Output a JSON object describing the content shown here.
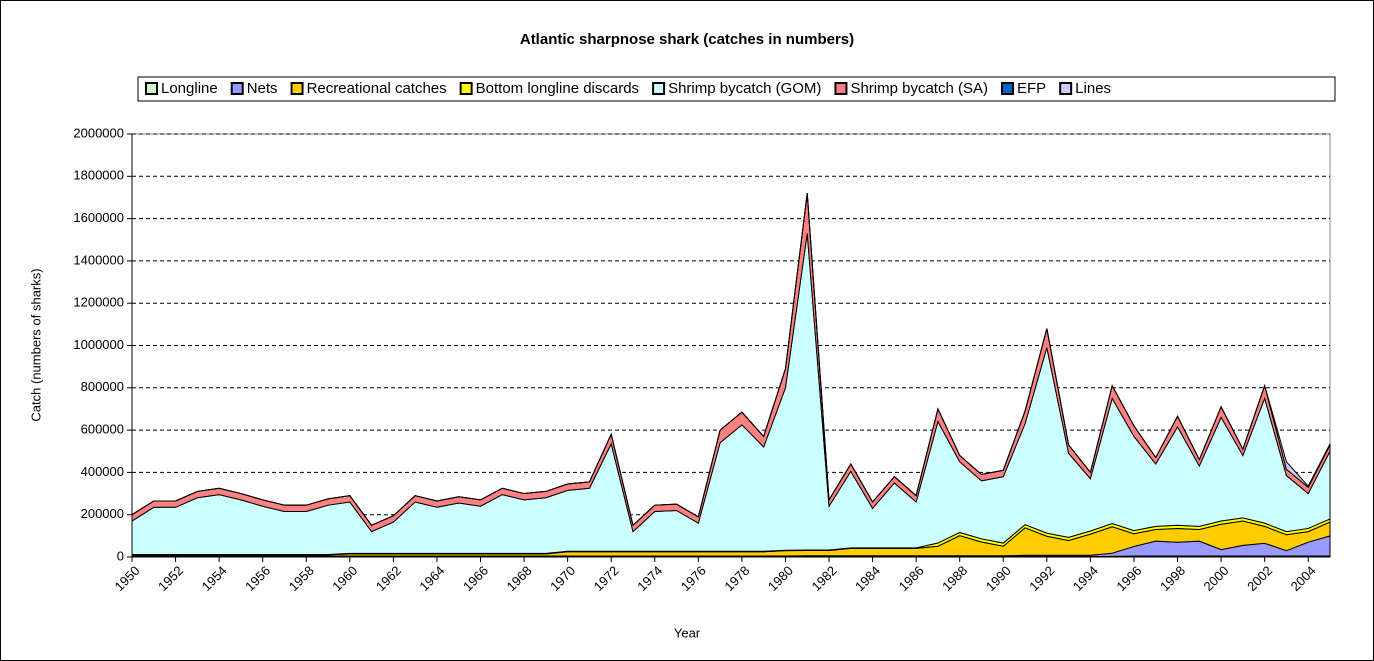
{
  "chart_data": {
    "type": "stacked_area",
    "title": "Atlantic sharpnose shark (catches in numbers)",
    "x_label": "Year",
    "y_label": "Catch (numbers of sharks)",
    "x": [
      1950,
      1951,
      1952,
      1953,
      1954,
      1955,
      1956,
      1957,
      1958,
      1959,
      1960,
      1961,
      1962,
      1963,
      1964,
      1965,
      1966,
      1967,
      1968,
      1969,
      1970,
      1971,
      1972,
      1973,
      1974,
      1975,
      1976,
      1977,
      1978,
      1979,
      1980,
      1981,
      1982,
      1983,
      1984,
      1985,
      1986,
      1987,
      1988,
      1989,
      1990,
      1991,
      1992,
      1993,
      1994,
      1995,
      1996,
      1997,
      1998,
      1999,
      2000,
      2001,
      2002,
      2003,
      2004,
      2005
    ],
    "xlim": [
      1950,
      2005
    ],
    "xticks": [
      1950,
      1952,
      1954,
      1956,
      1958,
      1960,
      1962,
      1964,
      1966,
      1968,
      1970,
      1972,
      1974,
      1976,
      1978,
      1980,
      1982,
      1984,
      1986,
      1988,
      1990,
      1992,
      1994,
      1996,
      1998,
      2000,
      2002,
      2004
    ],
    "ylim": [
      0,
      2000000
    ],
    "yticks": [
      0,
      200000,
      400000,
      600000,
      800000,
      1000000,
      1200000,
      1400000,
      1600000,
      1800000,
      2000000
    ],
    "grid": true,
    "legend": "top",
    "series": [
      {
        "name": "Longline",
        "color": "#ccffcc",
        "values": [
          2000,
          2000,
          2000,
          2000,
          2000,
          2000,
          2000,
          2000,
          2000,
          2000,
          2000,
          2000,
          2000,
          2000,
          2000,
          2000,
          2000,
          2000,
          2000,
          2000,
          2000,
          2000,
          2000,
          2000,
          2000,
          2000,
          2000,
          2000,
          2000,
          2000,
          2000,
          3000,
          3000,
          3000,
          3000,
          3000,
          3000,
          3000,
          3000,
          3000,
          3000,
          3000,
          3000,
          3000,
          3000,
          3000,
          5000,
          5000,
          5000,
          5000,
          5000,
          5000,
          5000,
          5000,
          5000,
          5000
        ]
      },
      {
        "name": "Nets",
        "color": "#9999ff",
        "values": [
          3000,
          3000,
          3000,
          3000,
          3000,
          3000,
          3000,
          3000,
          3000,
          3000,
          3000,
          3000,
          3000,
          3000,
          3000,
          3000,
          3000,
          3000,
          3000,
          3000,
          3000,
          3000,
          3000,
          3000,
          3000,
          3000,
          3000,
          3000,
          3000,
          3000,
          3000,
          3000,
          3000,
          3000,
          3000,
          3000,
          3000,
          3000,
          3000,
          3000,
          3000,
          5000,
          5000,
          5000,
          5000,
          15000,
          45000,
          70000,
          65000,
          70000,
          30000,
          50000,
          60000,
          25000,
          65000,
          95000
        ]
      },
      {
        "name": "Recreational catches",
        "color": "#ffcc00",
        "values": [
          5000,
          5000,
          5000,
          5000,
          5000,
          5000,
          5000,
          5000,
          5000,
          5000,
          10000,
          10000,
          10000,
          10000,
          10000,
          10000,
          10000,
          10000,
          10000,
          10000,
          20000,
          20000,
          20000,
          20000,
          20000,
          20000,
          20000,
          20000,
          20000,
          20000,
          25000,
          25000,
          25000,
          35000,
          35000,
          35000,
          35000,
          45000,
          95000,
          65000,
          45000,
          130000,
          90000,
          70000,
          100000,
          125000,
          60000,
          55000,
          65000,
          55000,
          120000,
          115000,
          80000,
          75000,
          50000,
          65000
        ]
      },
      {
        "name": "Bottom longline discards",
        "color": "#ffff00",
        "values": [
          2000,
          2000,
          2000,
          2000,
          2000,
          2000,
          2000,
          2000,
          2000,
          2000,
          2000,
          2000,
          2000,
          2000,
          2000,
          2000,
          2000,
          2000,
          2000,
          2000,
          2000,
          2000,
          2000,
          2000,
          2000,
          2000,
          2000,
          2000,
          2000,
          2000,
          2000,
          2000,
          2000,
          2000,
          2000,
          2000,
          2000,
          15000,
          15000,
          15000,
          15000,
          15000,
          15000,
          15000,
          15000,
          15000,
          15000,
          15000,
          15000,
          15000,
          15000,
          15000,
          15000,
          15000,
          15000,
          15000
        ]
      },
      {
        "name": "Shrimp bycatch (GOM)",
        "color": "#ccffff",
        "values": [
          158000,
          223000,
          223000,
          268000,
          283000,
          258000,
          228000,
          203000,
          203000,
          233000,
          243000,
          103000,
          148000,
          243000,
          218000,
          238000,
          223000,
          278000,
          253000,
          263000,
          288000,
          298000,
          508000,
          93000,
          188000,
          193000,
          133000,
          513000,
          598000,
          493000,
          768000,
          1497000,
          207000,
          362000,
          187000,
          307000,
          217000,
          574000,
          334000,
          274000,
          314000,
          477000,
          877000,
          397000,
          247000,
          592000,
          445000,
          295000,
          465000,
          285000,
          490000,
          295000,
          590000,
          265000,
          165000,
          320000
        ]
      },
      {
        "name": "Shrimp bycatch (SA)",
        "color": "#ff8080",
        "values": [
          30000,
          30000,
          30000,
          30000,
          30000,
          30000,
          30000,
          30000,
          30000,
          30000,
          30000,
          30000,
          30000,
          30000,
          30000,
          30000,
          30000,
          30000,
          30000,
          30000,
          30000,
          30000,
          45000,
          30000,
          30000,
          30000,
          30000,
          60000,
          60000,
          50000,
          90000,
          190000,
          30000,
          35000,
          30000,
          30000,
          30000,
          60000,
          30000,
          30000,
          30000,
          60000,
          90000,
          40000,
          30000,
          60000,
          50000,
          30000,
          50000,
          30000,
          50000,
          30000,
          60000,
          30000,
          30000,
          30000
        ]
      },
      {
        "name": "EFP",
        "color": "#0066cc",
        "values": [
          0,
          0,
          0,
          0,
          0,
          0,
          0,
          0,
          0,
          0,
          0,
          0,
          0,
          0,
          0,
          0,
          0,
          0,
          0,
          0,
          0,
          0,
          0,
          0,
          0,
          0,
          0,
          0,
          0,
          0,
          0,
          0,
          0,
          0,
          0,
          0,
          0,
          0,
          0,
          0,
          0,
          0,
          0,
          0,
          0,
          0,
          0,
          0,
          0,
          0,
          0,
          0,
          0,
          0,
          0,
          0
        ]
      },
      {
        "name": "Lines",
        "color": "#ccccff",
        "values": [
          0,
          0,
          0,
          0,
          0,
          0,
          0,
          0,
          0,
          0,
          0,
          0,
          0,
          0,
          0,
          0,
          0,
          0,
          0,
          0,
          0,
          0,
          0,
          0,
          0,
          0,
          0,
          0,
          0,
          0,
          0,
          0,
          0,
          0,
          0,
          0,
          0,
          0,
          0,
          0,
          0,
          0,
          0,
          0,
          0,
          0,
          0,
          0,
          0,
          0,
          0,
          0,
          0,
          35000,
          5000,
          5000
        ]
      }
    ]
  }
}
